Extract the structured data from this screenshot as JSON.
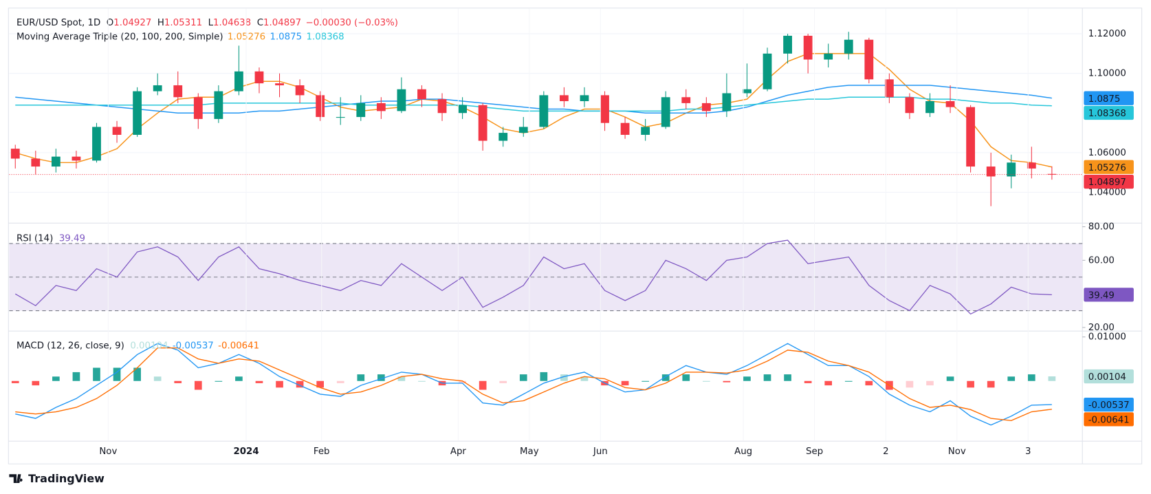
{
  "chart_data": [
    {
      "type": "candlestick",
      "title": "EUR/USD Spot, 1D",
      "ohlc_labels": [
        "O",
        "H",
        "L",
        "C"
      ],
      "change_label": "−0.00030 (−0.03%)",
      "indicator": "Moving Average Triple (20, 100, 200, Simple)",
      "up_color": "#089981",
      "down_color": "#f23645",
      "grid": true,
      "xlim": [
        -0.3,
        52.5
      ],
      "ylim": [
        1.0248,
        1.1326
      ],
      "yticks": [
        {
          "value": 1.04,
          "label": "1.04000"
        },
        {
          "value": 1.06,
          "label": "1.06000"
        },
        {
          "value": 1.1,
          "label": "1.10000"
        },
        {
          "value": 1.12,
          "label": "1.12000"
        }
      ],
      "open": [
        1.062,
        1.057,
        1.053,
        1.058,
        1.056,
        1.073,
        1.069,
        1.091,
        1.094,
        1.088,
        1.077,
        1.091,
        1.101,
        1.095,
        1.094,
        1.089,
        1.078,
        1.078,
        1.085,
        1.081,
        1.092,
        1.087,
        1.08,
        1.084,
        1.066,
        1.07,
        1.073,
        1.089,
        1.086,
        1.089,
        1.075,
        1.069,
        1.073,
        1.088,
        1.085,
        1.081,
        1.09,
        1.092,
        1.11,
        1.119,
        1.107,
        1.11,
        1.117,
        1.097,
        1.088,
        1.08,
        1.086,
        1.083,
        1.053,
        1.048,
        1.055,
        1.04927
      ],
      "high": [
        1.064,
        1.061,
        1.062,
        1.061,
        1.075,
        1.076,
        1.093,
        1.1,
        1.101,
        1.09,
        1.094,
        1.114,
        1.103,
        1.1,
        1.097,
        1.091,
        1.088,
        1.089,
        1.088,
        1.098,
        1.094,
        1.09,
        1.088,
        1.085,
        1.073,
        1.078,
        1.091,
        1.093,
        1.093,
        1.091,
        1.078,
        1.077,
        1.091,
        1.092,
        1.088,
        1.1,
        1.105,
        1.113,
        1.12,
        1.12,
        1.115,
        1.121,
        1.118,
        1.1,
        1.09,
        1.09,
        1.094,
        1.084,
        1.06,
        1.059,
        1.063,
        1.05311
      ],
      "low": [
        1.052,
        1.049,
        1.05,
        1.052,
        1.055,
        1.065,
        1.068,
        1.089,
        1.085,
        1.072,
        1.075,
        1.089,
        1.09,
        1.088,
        1.085,
        1.076,
        1.074,
        1.076,
        1.077,
        1.08,
        1.083,
        1.076,
        1.077,
        1.061,
        1.063,
        1.068,
        1.072,
        1.083,
        1.083,
        1.071,
        1.067,
        1.066,
        1.072,
        1.082,
        1.078,
        1.078,
        1.088,
        1.091,
        1.105,
        1.1,
        1.103,
        1.107,
        1.095,
        1.085,
        1.077,
        1.078,
        1.08,
        1.05,
        1.033,
        1.042,
        1.047,
        1.04638
      ],
      "close": [
        1.057,
        1.053,
        1.058,
        1.056,
        1.073,
        1.069,
        1.091,
        1.094,
        1.088,
        1.077,
        1.091,
        1.101,
        1.095,
        1.094,
        1.089,
        1.078,
        1.078,
        1.085,
        1.081,
        1.092,
        1.087,
        1.08,
        1.084,
        1.066,
        1.07,
        1.073,
        1.089,
        1.086,
        1.089,
        1.075,
        1.069,
        1.073,
        1.088,
        1.085,
        1.081,
        1.09,
        1.092,
        1.11,
        1.119,
        1.107,
        1.11,
        1.117,
        1.097,
        1.088,
        1.08,
        1.086,
        1.083,
        1.053,
        1.048,
        1.055,
        1.052,
        1.04897
      ],
      "series": [
        {
          "color": "#f7931a",
          "values": [
            1.06,
            1.057,
            1.055,
            1.055,
            1.058,
            1.062,
            1.072,
            1.08,
            1.087,
            1.088,
            1.088,
            1.093,
            1.096,
            1.096,
            1.093,
            1.088,
            1.083,
            1.081,
            1.082,
            1.083,
            1.087,
            1.086,
            1.083,
            1.078,
            1.072,
            1.07,
            1.072,
            1.078,
            1.082,
            1.082,
            1.078,
            1.073,
            1.075,
            1.08,
            1.084,
            1.085,
            1.087,
            1.097,
            1.106,
            1.11,
            1.11,
            1.11,
            1.11,
            1.102,
            1.092,
            1.086,
            1.085,
            1.076,
            1.063,
            1.056,
            1.055,
            1.05276
          ]
        },
        {
          "color": "#2196f3",
          "values": [
            1.088,
            1.087,
            1.086,
            1.085,
            1.084,
            1.083,
            1.082,
            1.081,
            1.08,
            1.08,
            1.08,
            1.08,
            1.081,
            1.081,
            1.082,
            1.083,
            1.084,
            1.085,
            1.086,
            1.086,
            1.087,
            1.087,
            1.086,
            1.085,
            1.084,
            1.083,
            1.082,
            1.082,
            1.081,
            1.081,
            1.081,
            1.08,
            1.08,
            1.08,
            1.08,
            1.081,
            1.083,
            1.086,
            1.089,
            1.091,
            1.093,
            1.094,
            1.094,
            1.094,
            1.094,
            1.094,
            1.093,
            1.092,
            1.091,
            1.09,
            1.089,
            1.0875
          ]
        },
        {
          "color": "#26c6da",
          "values": [
            1.084,
            1.084,
            1.084,
            1.084,
            1.084,
            1.084,
            1.084,
            1.084,
            1.084,
            1.084,
            1.085,
            1.085,
            1.085,
            1.085,
            1.085,
            1.085,
            1.085,
            1.084,
            1.084,
            1.084,
            1.084,
            1.084,
            1.084,
            1.083,
            1.082,
            1.081,
            1.081,
            1.081,
            1.081,
            1.081,
            1.081,
            1.081,
            1.081,
            1.082,
            1.082,
            1.083,
            1.084,
            1.085,
            1.086,
            1.087,
            1.087,
            1.088,
            1.088,
            1.088,
            1.088,
            1.087,
            1.087,
            1.086,
            1.085,
            1.085,
            1.084,
            1.08368
          ]
        }
      ]
    },
    {
      "type": "line",
      "title": "RSI (14)",
      "xlim": [
        -0.3,
        52.5
      ],
      "ylim": [
        18.3,
        81.7
      ],
      "yticks": [
        {
          "value": 20,
          "label": "20.00"
        },
        {
          "value": 60,
          "label": "60.00"
        },
        {
          "value": 80,
          "label": "80.00"
        }
      ],
      "levels": [
        70,
        50,
        30
      ],
      "band": [
        30,
        70
      ],
      "band_color": "#ede7f6",
      "series": [
        {
          "color": "#7e57c2",
          "values": [
            40,
            33,
            45,
            42,
            55,
            50,
            65,
            68,
            62,
            48,
            62,
            68,
            55,
            52,
            48,
            45,
            42,
            48,
            45,
            58,
            50,
            42,
            50,
            32,
            38,
            45,
            62,
            55,
            58,
            42,
            36,
            42,
            60,
            55,
            48,
            60,
            62,
            70,
            72,
            58,
            60,
            62,
            45,
            36,
            30,
            45,
            40,
            28,
            34,
            44,
            40,
            39.49
          ]
        }
      ]
    },
    {
      "type": "macd",
      "title": "MACD (12, 26, close, 9)",
      "xlim": [
        -0.3,
        52.5
      ],
      "ylim": [
        -0.0135,
        0.01117
      ],
      "yticks": [
        {
          "value": 0.01,
          "label": "0.01000"
        }
      ],
      "xticks": [
        {
          "value": 4.57,
          "label": "Nov"
        },
        {
          "value": 11.36,
          "label": "2024"
        },
        {
          "value": 15.07,
          "label": "Feb"
        },
        {
          "value": 21.79,
          "label": "Apr"
        },
        {
          "value": 25.29,
          "label": "May"
        },
        {
          "value": 28.79,
          "label": "Jun"
        },
        {
          "value": 35.82,
          "label": "Aug"
        },
        {
          "value": 39.32,
          "label": "Sep"
        },
        {
          "value": 42.83,
          "label": "2"
        },
        {
          "value": 46.33,
          "label": "Nov"
        },
        {
          "value": 49.83,
          "label": "3"
        }
      ],
      "histogram": {
        "colors": [
          "#26a69a",
          "#b2dfdb",
          "#ff5252",
          "#ffcdd2"
        ],
        "values": [
          -0.0005,
          -0.001,
          0.001,
          0.002,
          0.003,
          0.003,
          0.003,
          0.001,
          -0.0005,
          -0.002,
          0,
          0.001,
          -0.0005,
          -0.0015,
          -0.0015,
          -0.0015,
          -0.0005,
          0.0015,
          0.0015,
          0.001,
          0,
          -0.001,
          -0.0005,
          -0.002,
          -0.0005,
          0.0015,
          0.002,
          0.0015,
          0.001,
          -0.001,
          -0.001,
          0,
          0.0015,
          0.0015,
          0,
          -0.0003,
          0.001,
          0.0015,
          0.0015,
          -0.0005,
          -0.001,
          0,
          -0.001,
          -0.002,
          -0.0015,
          -0.001,
          0.001,
          -0.0015,
          -0.0015,
          0.001,
          0.0015,
          0.00104
        ]
      },
      "series": [
        {
          "color": "#2196f3",
          "values": [
            -0.0075,
            -0.0085,
            -0.006,
            -0.004,
            -0.001,
            0.002,
            0.006,
            0.0085,
            0.007,
            0.003,
            0.004,
            0.006,
            0.004,
            0.001,
            -0.001,
            -0.003,
            -0.0035,
            -0.001,
            0.0005,
            0.002,
            0.0015,
            -0.0005,
            -0.0005,
            -0.005,
            -0.0055,
            -0.003,
            -0.0005,
            0.001,
            0.002,
            -0.0005,
            -0.0025,
            -0.002,
            0.001,
            0.0035,
            0.002,
            0.0015,
            0.0035,
            0.006,
            0.0085,
            0.006,
            0.0035,
            0.0035,
            0.001,
            -0.003,
            -0.0055,
            -0.007,
            -0.0045,
            -0.008,
            -0.01,
            -0.008,
            -0.0055,
            -0.00537
          ]
        },
        {
          "color": "#ff6d00",
          "values": [
            -0.007,
            -0.0075,
            -0.007,
            -0.006,
            -0.004,
            -0.001,
            0.003,
            0.0075,
            0.0075,
            0.005,
            0.004,
            0.005,
            0.0045,
            0.0025,
            0.0005,
            -0.0015,
            -0.003,
            -0.0025,
            -0.001,
            0.001,
            0.0015,
            0.0005,
            0,
            -0.003,
            -0.005,
            -0.0045,
            -0.0025,
            -0.0005,
            0.001,
            0.0005,
            -0.0015,
            -0.002,
            -0.0005,
            0.002,
            0.002,
            0.0018,
            0.0025,
            0.0045,
            0.007,
            0.0065,
            0.0045,
            0.0035,
            0.002,
            -0.001,
            -0.004,
            -0.006,
            -0.0055,
            -0.0065,
            -0.0085,
            -0.009,
            -0.007,
            -0.00641
          ]
        }
      ]
    }
  ],
  "footer": "TradingView"
}
